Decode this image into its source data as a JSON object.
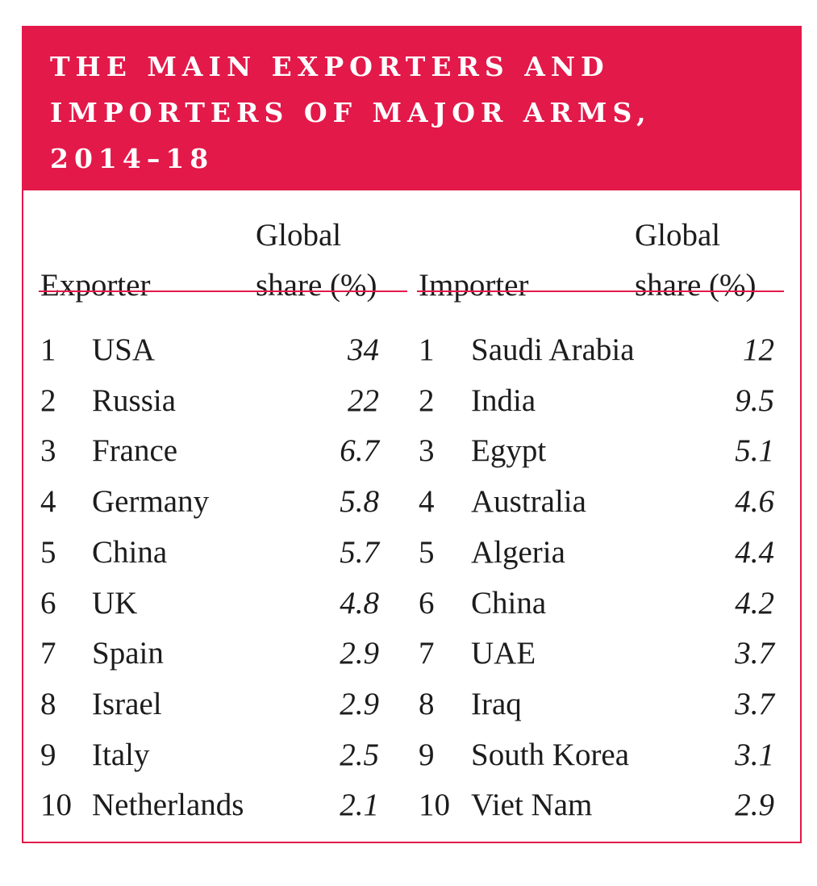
{
  "title": "THE MAIN EXPORTERS AND IMPORTERS OF MAJOR ARMS, 2014–18",
  "exporters": {
    "header_name": "Exporter",
    "header_share_line1": "Global",
    "header_share_line2": "share (%)",
    "rows": [
      {
        "rank": "1",
        "country": "USA",
        "share": "34"
      },
      {
        "rank": "2",
        "country": "Russia",
        "share": "22"
      },
      {
        "rank": "3",
        "country": "France",
        "share": "6.7"
      },
      {
        "rank": "4",
        "country": "Germany",
        "share": "5.8"
      },
      {
        "rank": "5",
        "country": "China",
        "share": "5.7"
      },
      {
        "rank": "6",
        "country": "UK",
        "share": "4.8"
      },
      {
        "rank": "7",
        "country": "Spain",
        "share": "2.9"
      },
      {
        "rank": "8",
        "country": "Israel",
        "share": "2.9"
      },
      {
        "rank": "9",
        "country": "Italy",
        "share": "2.5"
      },
      {
        "rank": "10",
        "country": "Netherlands",
        "share": "2.1"
      }
    ]
  },
  "importers": {
    "header_name": "Importer",
    "header_share_line1": "Global",
    "header_share_line2": "share (%)",
    "rows": [
      {
        "rank": "1",
        "country": "Saudi Arabia",
        "share": "12"
      },
      {
        "rank": "2",
        "country": "India",
        "share": "9.5"
      },
      {
        "rank": "3",
        "country": "Egypt",
        "share": "5.1"
      },
      {
        "rank": "4",
        "country": "Australia",
        "share": "4.6"
      },
      {
        "rank": "5",
        "country": "Algeria",
        "share": "4.4"
      },
      {
        "rank": "6",
        "country": "China",
        "share": "4.2"
      },
      {
        "rank": "7",
        "country": "UAE",
        "share": "3.7"
      },
      {
        "rank": "8",
        "country": "Iraq",
        "share": "3.7"
      },
      {
        "rank": "9",
        "country": "South Korea",
        "share": "3.1"
      },
      {
        "rank": "10",
        "country": "Viet Nam",
        "share": "2.9"
      }
    ]
  },
  "colors": {
    "accent": "#e3194a",
    "text": "#1c1c1c"
  }
}
